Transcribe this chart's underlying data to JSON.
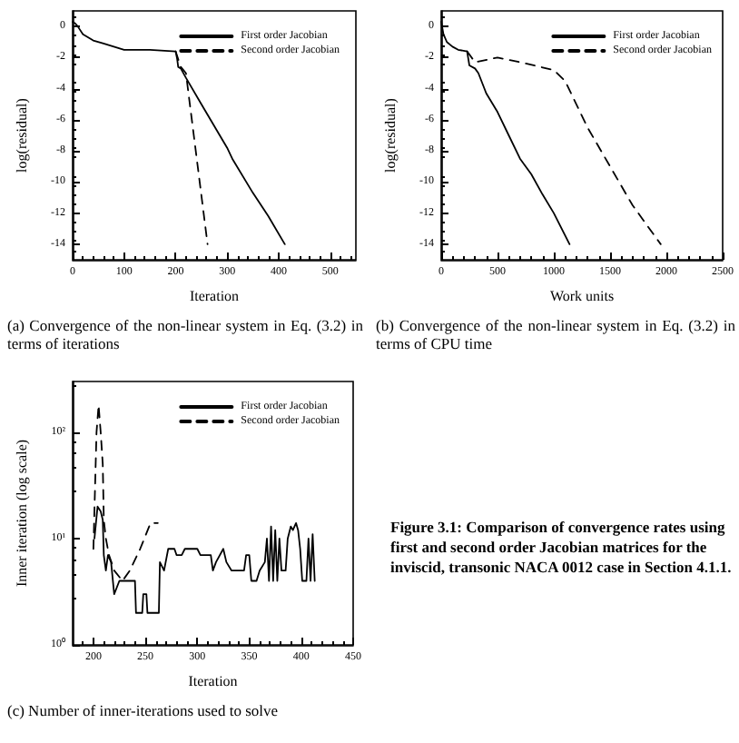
{
  "chart_data": [
    {
      "type": "line",
      "xlabel": "Iteration",
      "ylabel": "log(residual)",
      "xlim": [
        0,
        550
      ],
      "xticks": [
        0,
        100,
        200,
        300,
        400,
        500
      ],
      "ylim": [
        -15,
        1
      ],
      "yticks": [
        -14,
        -12,
        -10,
        -8,
        -6,
        -4,
        -2,
        0
      ],
      "grid": false,
      "legend": "top right",
      "marker": "none",
      "annotations": [
        "(a) Convergence of the non-linear system in Eq. (3.2) in terms of iterations"
      ],
      "series": [
        {
          "name": "First order Jacobian",
          "color": "#000000",
          "line_style": "solid",
          "x": [
            0,
            5,
            10,
            20,
            40,
            60,
            80,
            100,
            150,
            200,
            203,
            205,
            210,
            220,
            250,
            300,
            310,
            350,
            380,
            412
          ],
          "values": [
            0.3,
            0.2,
            0,
            -0.5,
            -0.9,
            -1.1,
            -1.3,
            -1.5,
            -1.5,
            -1.6,
            -2.1,
            -2.6,
            -2.7,
            -3.3,
            -5,
            -7.8,
            -8.5,
            -10.7,
            -12.2,
            -14
          ]
        },
        {
          "name": "Second order Jacobian",
          "color": "#000000",
          "line_style": "dashed",
          "x": [
            200,
            210,
            220,
            262
          ],
          "values": [
            -1.6,
            -2.6,
            -3.0,
            -14
          ]
        }
      ]
    },
    {
      "type": "line",
      "xlabel": "Work units",
      "ylabel": "log(residual)",
      "xlim": [
        0,
        2500
      ],
      "xticks": [
        0,
        500,
        1000,
        1500,
        2000,
        2500
      ],
      "ylim": [
        -15,
        1
      ],
      "yticks": [
        -14,
        -12,
        -10,
        -8,
        -6,
        -4,
        -2,
        0
      ],
      "grid": false,
      "legend": "top right",
      "marker": "none",
      "annotations": [
        "(b) Convergence of the non-linear system in Eq. (3.2) in terms of CPU time"
      ],
      "series": [
        {
          "name": "First order Jacobian",
          "color": "#000000",
          "line_style": "solid",
          "x": [
            0,
            20,
            50,
            100,
            150,
            230,
            250,
            300,
            330,
            400,
            500,
            600,
            700,
            800,
            900,
            1000,
            1140
          ],
          "values": [
            0.3,
            -0.5,
            -1,
            -1.3,
            -1.5,
            -1.6,
            -2.5,
            -2.7,
            -3.0,
            -4.3,
            -5.5,
            -7,
            -8.5,
            -9.5,
            -10.8,
            -12,
            -14
          ]
        },
        {
          "name": "Second order Jacobian",
          "color": "#000000",
          "line_style": "dashed",
          "x": [
            230,
            300,
            500,
            700,
            1000,
            1100,
            1300,
            1500,
            1700,
            1950
          ],
          "values": [
            -1.6,
            -2.3,
            -2.0,
            -2.3,
            -2.8,
            -3.5,
            -6.5,
            -9,
            -11.5,
            -14
          ]
        }
      ]
    },
    {
      "type": "line",
      "xlabel": "Iteration",
      "ylabel": "Inner iteration (log scale)",
      "log": "y",
      "xlim": [
        180,
        450
      ],
      "xticks": [
        200,
        250,
        300,
        350,
        400,
        450
      ],
      "ylim": [
        1,
        300
      ],
      "yticks": [
        {
          "value": 1,
          "label": "10⁰"
        },
        {
          "value": 10,
          "label": "10¹"
        },
        {
          "value": 100,
          "label": "10²"
        }
      ],
      "grid": false,
      "legend": "top right",
      "marker": "none",
      "annotations": [
        "(c) Number of inner-iterations used to solve",
        "Figure 3.1: Comparison of convergence rates using first and second order Jacobian matrices for the inviscid, transonic NACA 0012 case in Section 4.1.1."
      ],
      "series": [
        {
          "name": "First order Jacobian",
          "color": "#000000",
          "line_style": "solid",
          "x": [
            201,
            204,
            207,
            209,
            210,
            212,
            214,
            217,
            220,
            225,
            240,
            241,
            247,
            248,
            251,
            252,
            263,
            264,
            268,
            272,
            278,
            280,
            285,
            288,
            300,
            303,
            313,
            315,
            318,
            325,
            328,
            333,
            345,
            347,
            350,
            352,
            357,
            360,
            365,
            367,
            369,
            371,
            373,
            375,
            377,
            379,
            381,
            385,
            387,
            390,
            392,
            395,
            397,
            399,
            401,
            405,
            407,
            409,
            411,
            413
          ],
          "values": [
            10,
            20,
            18,
            15,
            7,
            5,
            7,
            6,
            3,
            4,
            4,
            2,
            2,
            3,
            3,
            2,
            2,
            6,
            5,
            8,
            8,
            7,
            7,
            8,
            8,
            7,
            7,
            5,
            6,
            8,
            6,
            5,
            5,
            7,
            7,
            4,
            4,
            5,
            6,
            10,
            4,
            13,
            4,
            12,
            4,
            10,
            5,
            5,
            10,
            13,
            12,
            14,
            12,
            8,
            4,
            4,
            10,
            4,
            11,
            4
          ]
        },
        {
          "name": "Second order Jacobian",
          "color": "#000000",
          "line_style": "dashed",
          "x": [
            200,
            203,
            205,
            207,
            209,
            210,
            212,
            215,
            220,
            228,
            235,
            245,
            255,
            262
          ],
          "values": [
            8,
            100,
            180,
            100,
            50,
            15,
            10,
            7,
            5,
            4,
            5,
            8,
            14,
            14
          ]
        }
      ]
    }
  ]
}
